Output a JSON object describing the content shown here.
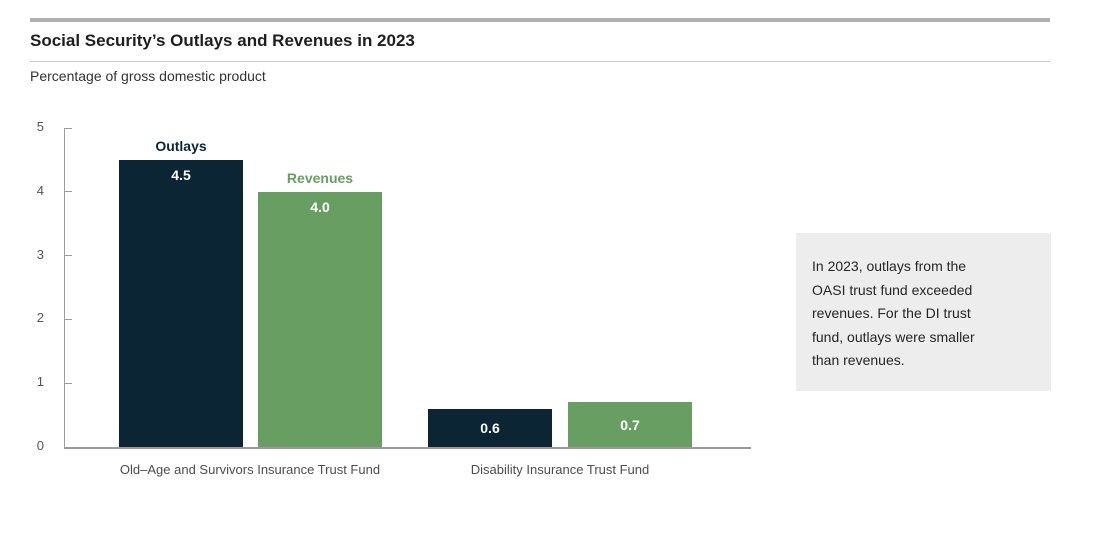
{
  "chart_data": {
    "type": "bar",
    "title": "Social Security’s Outlays and Revenues in 2023",
    "subtitle": "Percentage of gross domestic product",
    "categories": [
      "Old–Age and Survivors Insurance Trust Fund",
      "Disability Insurance Trust Fund"
    ],
    "category_slugs": [
      "oasi",
      "di"
    ],
    "series": [
      {
        "name": "Outlays",
        "slug": "outlays",
        "color": "#0c2535",
        "values": [
          4.5,
          0.6
        ],
        "value_labels": [
          "4.5",
          "0.6"
        ]
      },
      {
        "name": "Revenues",
        "slug": "revenues",
        "color": "#699e63",
        "values": [
          4.0,
          0.7
        ],
        "value_labels": [
          "4.0",
          "0.7"
        ]
      }
    ],
    "ylim": [
      0,
      5
    ],
    "yticks": [
      0,
      1,
      2,
      3,
      4,
      5
    ],
    "grid": false,
    "legend_position": "series labels above first category bars",
    "value_label_color": "#ffffff"
  },
  "annotation": {
    "text": "In 2023, outlays from the\nOASI trust fund exceeded\nrevenues. For the DI trust\nfund, outlays were smaller\nthan revenues."
  },
  "colors": {
    "outlays_bar": "#0c2535",
    "revenues_bar": "#699e63",
    "axis": "#9b9b9b",
    "tick_label": "#545454",
    "category_label": "#4d4d4d",
    "annotation_bg": "#ededed",
    "rule_thick": "#b0b0b0",
    "rule_thin": "#c8c8c8"
  }
}
